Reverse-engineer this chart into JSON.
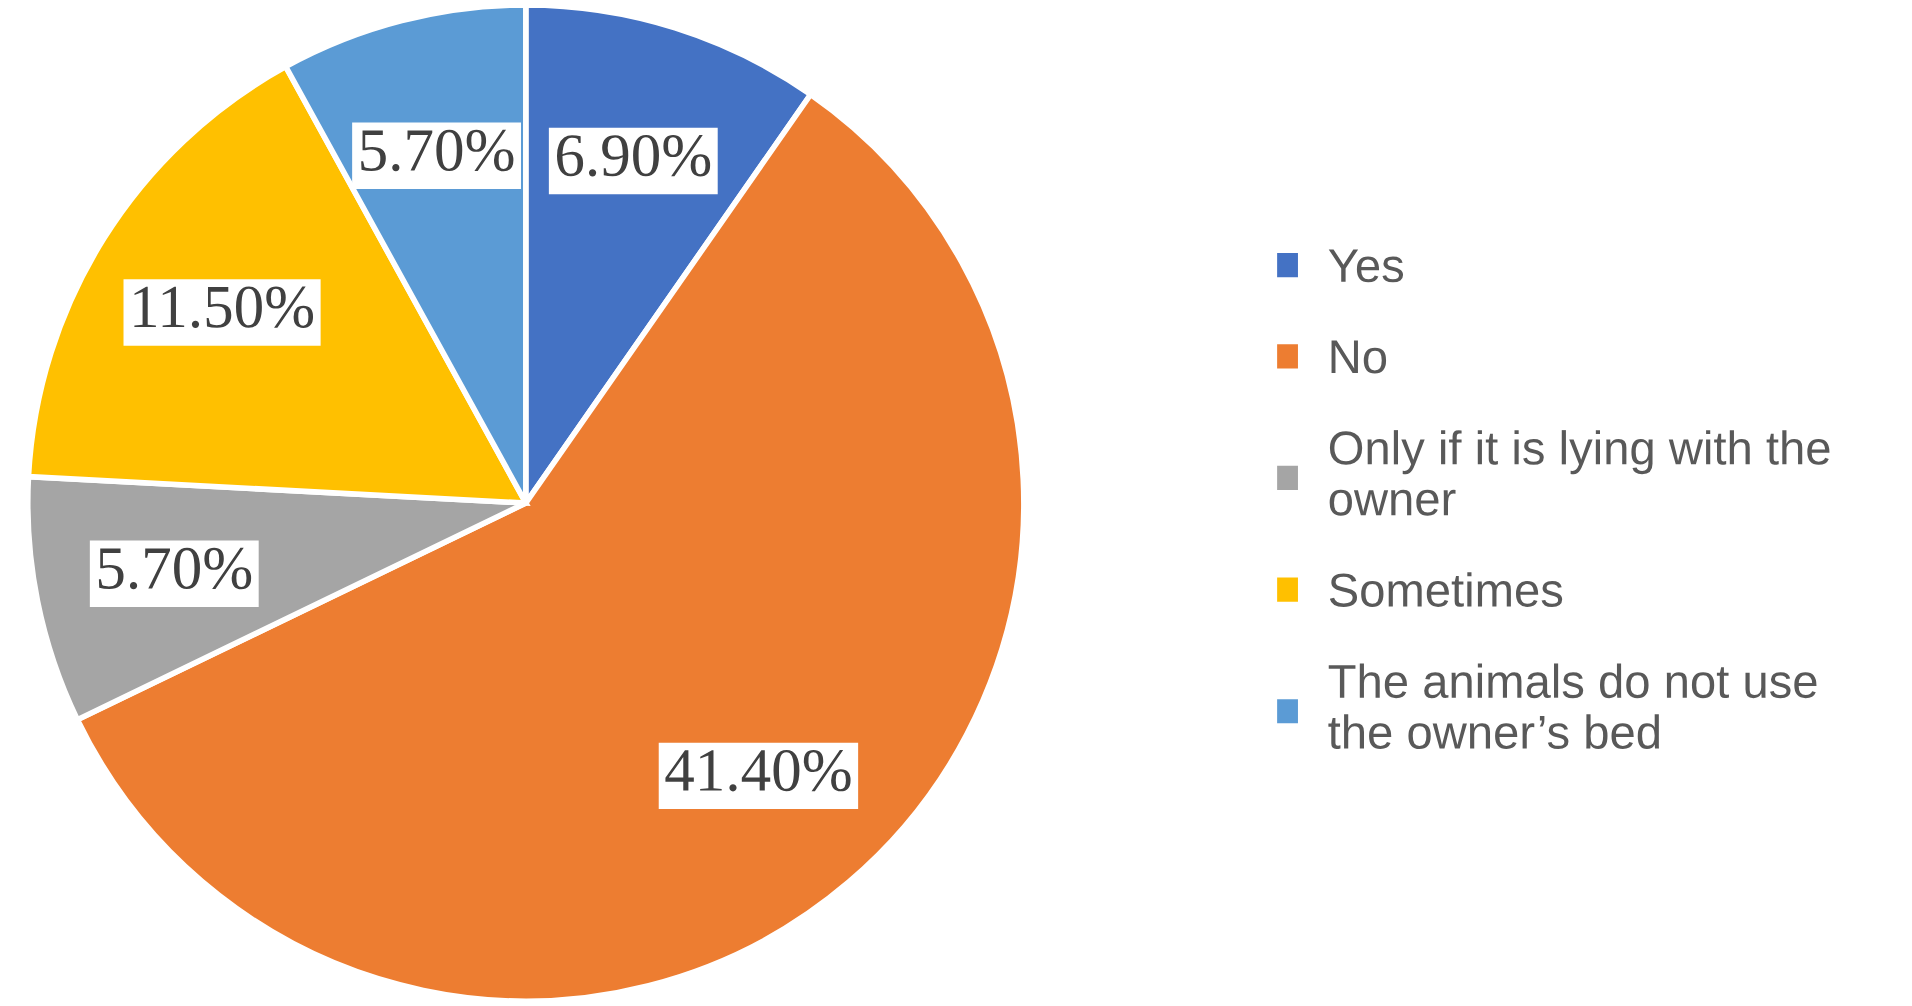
{
  "chart_data": {
    "type": "pie",
    "categories": [
      "Yes",
      "No",
      "Only if it is lying with the owner",
      "Sometimes",
      "The animals do not use the owner’s bed"
    ],
    "values": [
      6.9,
      41.4,
      5.7,
      11.5,
      5.7
    ],
    "value_labels": [
      "6.90%",
      "41.40%",
      "5.70%",
      "11.50%",
      "5.70%"
    ],
    "colors": [
      "#4472c4",
      "#ed7d31",
      "#a5a5a5",
      "#ffc000",
      "#5b9bd5"
    ],
    "legend": "right"
  }
}
